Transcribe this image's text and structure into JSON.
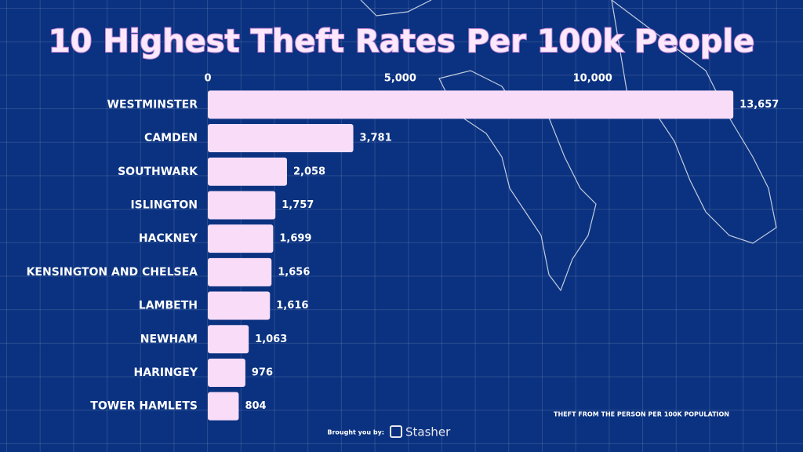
{
  "chart_data": {
    "type": "hbar",
    "title": "10 Highest Theft Rates Per 100k People",
    "categories": [
      "WESTMINSTER",
      "CAMDEN",
      "SOUTHWARK",
      "ISLINGTON",
      "HACKNEY",
      "KENSINGTON AND CHELSEA",
      "LAMBETH",
      "NEWHAM",
      "HARINGEY",
      "TOWER HAMLETS"
    ],
    "values": [
      13657,
      3781,
      2058,
      1757,
      1699,
      1656,
      1616,
      1063,
      976,
      804
    ],
    "value_labels": [
      "13,657",
      "3,781",
      "2,058",
      "1,757",
      "1,699",
      "1,656",
      "1,616",
      "1,063",
      "976",
      "804"
    ],
    "color": "#f8dcf8",
    "xlim": [
      0,
      14000
    ],
    "xticks": [
      0,
      {
        "value": 5000,
        "label": "5,000"
      },
      {
        "value": 10000,
        "label": "10,000"
      }
    ],
    "note": "THEFT FROM THE PERSON PER 100K POPULATION",
    "credit_prefix": "Brought you by:",
    "credit_brand": "Stasher"
  }
}
